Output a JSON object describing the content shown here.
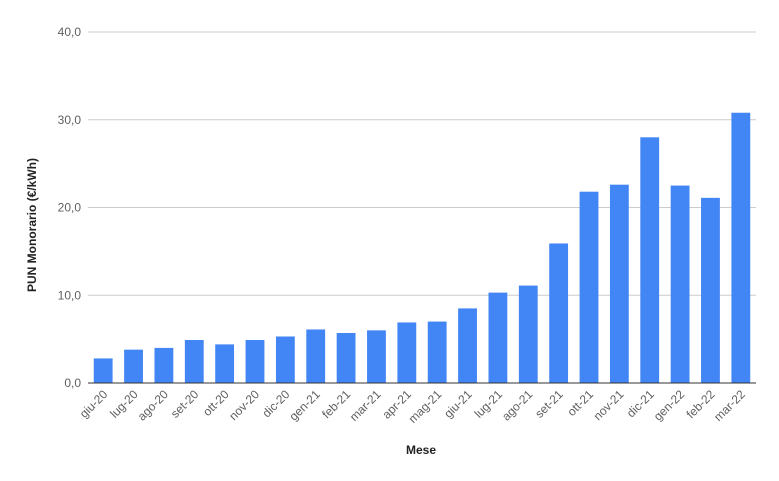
{
  "chart_data": {
    "type": "bar",
    "title": "",
    "xlabel": "Mese",
    "ylabel": "PUN Monorario (€/kWh)",
    "ylim": [
      0,
      40
    ],
    "yticks": [
      "0,0",
      "10,0",
      "20,0",
      "30,0",
      "40,0"
    ],
    "grid": true,
    "bar_color": "#4285f4",
    "categories": [
      "giu-20",
      "lug-20",
      "ago-20",
      "set-20",
      "ott-20",
      "nov-20",
      "dic-20",
      "gen-21",
      "feb-21",
      "mar-21",
      "apr-21",
      "mag-21",
      "giu-21",
      "lug-21",
      "ago-21",
      "set-21",
      "ott-21",
      "nov-21",
      "dic-21",
      "gen-22",
      "feb-22",
      "mar-22"
    ],
    "values": [
      2.8,
      3.8,
      4.0,
      4.9,
      4.4,
      4.9,
      5.3,
      6.1,
      5.7,
      6.0,
      6.9,
      7.0,
      8.5,
      10.3,
      11.1,
      15.9,
      21.8,
      22.6,
      28.0,
      22.5,
      21.1,
      30.8
    ]
  }
}
